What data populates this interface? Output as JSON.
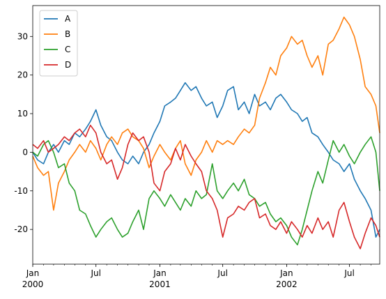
{
  "chart_data": {
    "type": "line",
    "title": "",
    "xlabel": "",
    "ylabel": "",
    "x_range": [
      "2000-01-01",
      "2002-09-26"
    ],
    "ylim": [
      -29,
      38
    ],
    "grid": false,
    "legend_position": "top-left",
    "x_ticks": [
      {
        "date": "2000-01-01",
        "label": "Jan",
        "year": "2000"
      },
      {
        "date": "2000-07-01",
        "label": "Jul",
        "year": ""
      },
      {
        "date": "2001-01-01",
        "label": "Jan",
        "year": "2001"
      },
      {
        "date": "2001-07-01",
        "label": "Jul",
        "year": ""
      },
      {
        "date": "2002-01-01",
        "label": "Jan",
        "year": "2002"
      },
      {
        "date": "2002-07-01",
        "label": "Jul",
        "year": ""
      }
    ],
    "y_ticks": [
      -20,
      -10,
      0,
      10,
      20,
      30
    ],
    "series": [
      {
        "name": "A",
        "color": "#1f77b4",
        "points": [
          [
            "2000-01-01",
            0
          ],
          [
            "2000-01-15",
            -2
          ],
          [
            "2000-02-01",
            -3
          ],
          [
            "2000-02-15",
            0
          ],
          [
            "2000-03-01",
            2
          ],
          [
            "2000-03-15",
            0
          ],
          [
            "2000-04-01",
            3
          ],
          [
            "2000-04-15",
            2
          ],
          [
            "2000-05-01",
            5
          ],
          [
            "2000-05-15",
            4
          ],
          [
            "2000-06-01",
            6
          ],
          [
            "2000-06-15",
            8
          ],
          [
            "2000-07-01",
            11
          ],
          [
            "2000-07-15",
            7
          ],
          [
            "2000-08-01",
            4
          ],
          [
            "2000-08-15",
            3
          ],
          [
            "2000-09-01",
            0
          ],
          [
            "2000-09-15",
            -2
          ],
          [
            "2000-10-01",
            -3
          ],
          [
            "2000-10-15",
            -1
          ],
          [
            "2000-11-01",
            -3
          ],
          [
            "2000-11-15",
            0
          ],
          [
            "2000-12-01",
            2
          ],
          [
            "2000-12-15",
            5
          ],
          [
            "2001-01-01",
            8
          ],
          [
            "2001-01-15",
            12
          ],
          [
            "2001-02-01",
            13
          ],
          [
            "2001-02-15",
            14
          ],
          [
            "2001-03-01",
            16
          ],
          [
            "2001-03-15",
            18
          ],
          [
            "2001-04-01",
            16
          ],
          [
            "2001-04-15",
            17
          ],
          [
            "2001-05-01",
            14
          ],
          [
            "2001-05-15",
            12
          ],
          [
            "2001-06-01",
            13
          ],
          [
            "2001-06-15",
            9
          ],
          [
            "2001-07-01",
            12
          ],
          [
            "2001-07-15",
            16
          ],
          [
            "2001-08-01",
            17
          ],
          [
            "2001-08-15",
            11
          ],
          [
            "2001-09-01",
            13
          ],
          [
            "2001-09-15",
            10
          ],
          [
            "2001-10-01",
            15
          ],
          [
            "2001-10-15",
            12
          ],
          [
            "2001-11-01",
            13
          ],
          [
            "2001-11-15",
            11
          ],
          [
            "2001-12-01",
            14
          ],
          [
            "2001-12-15",
            15
          ],
          [
            "2002-01-01",
            13
          ],
          [
            "2002-01-15",
            11
          ],
          [
            "2002-02-01",
            10
          ],
          [
            "2002-02-15",
            8
          ],
          [
            "2002-03-01",
            9
          ],
          [
            "2002-03-15",
            5
          ],
          [
            "2002-04-01",
            4
          ],
          [
            "2002-04-15",
            2
          ],
          [
            "2002-05-01",
            0
          ],
          [
            "2002-05-15",
            -2
          ],
          [
            "2002-06-01",
            -3
          ],
          [
            "2002-06-15",
            -5
          ],
          [
            "2002-07-01",
            -3
          ],
          [
            "2002-07-15",
            -7
          ],
          [
            "2002-08-01",
            -10
          ],
          [
            "2002-08-15",
            -12
          ],
          [
            "2002-09-01",
            -15
          ],
          [
            "2002-09-15",
            -22
          ],
          [
            "2002-09-26",
            -20
          ]
        ]
      },
      {
        "name": "B",
        "color": "#ff7f0e",
        "points": [
          [
            "2000-01-01",
            -1
          ],
          [
            "2000-01-15",
            -4
          ],
          [
            "2000-02-01",
            -6
          ],
          [
            "2000-02-15",
            -5
          ],
          [
            "2000-03-01",
            -15
          ],
          [
            "2000-03-15",
            -8
          ],
          [
            "2000-04-01",
            -5
          ],
          [
            "2000-04-15",
            -2
          ],
          [
            "2000-05-01",
            0
          ],
          [
            "2000-05-15",
            2
          ],
          [
            "2000-06-01",
            0
          ],
          [
            "2000-06-15",
            3
          ],
          [
            "2000-07-01",
            1
          ],
          [
            "2000-07-15",
            -2
          ],
          [
            "2000-08-01",
            2
          ],
          [
            "2000-08-15",
            4
          ],
          [
            "2000-09-01",
            2
          ],
          [
            "2000-09-15",
            5
          ],
          [
            "2000-10-01",
            6
          ],
          [
            "2000-10-15",
            4
          ],
          [
            "2000-11-01",
            3
          ],
          [
            "2000-11-15",
            1
          ],
          [
            "2000-12-01",
            -4
          ],
          [
            "2000-12-15",
            -1
          ],
          [
            "2001-01-01",
            2
          ],
          [
            "2001-01-15",
            0
          ],
          [
            "2001-02-01",
            -2
          ],
          [
            "2001-02-15",
            1
          ],
          [
            "2001-03-01",
            3
          ],
          [
            "2001-03-15",
            -3
          ],
          [
            "2001-04-01",
            -6
          ],
          [
            "2001-04-15",
            -2
          ],
          [
            "2001-05-01",
            0
          ],
          [
            "2001-05-15",
            3
          ],
          [
            "2001-06-01",
            0
          ],
          [
            "2001-06-15",
            3
          ],
          [
            "2001-07-01",
            2
          ],
          [
            "2001-07-15",
            3
          ],
          [
            "2001-08-01",
            2
          ],
          [
            "2001-08-15",
            4
          ],
          [
            "2001-09-01",
            6
          ],
          [
            "2001-09-15",
            5
          ],
          [
            "2001-10-01",
            7
          ],
          [
            "2001-10-15",
            14
          ],
          [
            "2001-11-01",
            18
          ],
          [
            "2001-11-15",
            22
          ],
          [
            "2001-12-01",
            20
          ],
          [
            "2001-12-15",
            25
          ],
          [
            "2002-01-01",
            27
          ],
          [
            "2002-01-15",
            30
          ],
          [
            "2002-02-01",
            28
          ],
          [
            "2002-02-15",
            29
          ],
          [
            "2002-03-01",
            25
          ],
          [
            "2002-03-15",
            22
          ],
          [
            "2002-04-01",
            25
          ],
          [
            "2002-04-15",
            20
          ],
          [
            "2002-05-01",
            28
          ],
          [
            "2002-05-15",
            29
          ],
          [
            "2002-06-01",
            32
          ],
          [
            "2002-06-15",
            35
          ],
          [
            "2002-07-01",
            33
          ],
          [
            "2002-07-15",
            30
          ],
          [
            "2002-08-01",
            24
          ],
          [
            "2002-08-15",
            17
          ],
          [
            "2002-09-01",
            15
          ],
          [
            "2002-09-15",
            12
          ],
          [
            "2002-09-26",
            5
          ]
        ]
      },
      {
        "name": "C",
        "color": "#2ca02c",
        "points": [
          [
            "2000-01-01",
            0
          ],
          [
            "2000-01-15",
            -1
          ],
          [
            "2000-02-01",
            2
          ],
          [
            "2000-02-15",
            3
          ],
          [
            "2000-03-01",
            0
          ],
          [
            "2000-03-15",
            -4
          ],
          [
            "2000-04-01",
            -3
          ],
          [
            "2000-04-15",
            -8
          ],
          [
            "2000-05-01",
            -10
          ],
          [
            "2000-05-15",
            -15
          ],
          [
            "2000-06-01",
            -16
          ],
          [
            "2000-06-15",
            -19
          ],
          [
            "2000-07-01",
            -22
          ],
          [
            "2000-07-15",
            -20
          ],
          [
            "2000-08-01",
            -18
          ],
          [
            "2000-08-15",
            -17
          ],
          [
            "2000-09-01",
            -20
          ],
          [
            "2000-09-15",
            -22
          ],
          [
            "2000-10-01",
            -21
          ],
          [
            "2000-10-15",
            -18
          ],
          [
            "2000-11-01",
            -15
          ],
          [
            "2000-11-15",
            -20
          ],
          [
            "2000-12-01",
            -12
          ],
          [
            "2000-12-15",
            -10
          ],
          [
            "2001-01-01",
            -12
          ],
          [
            "2001-01-15",
            -14
          ],
          [
            "2001-02-01",
            -11
          ],
          [
            "2001-02-15",
            -13
          ],
          [
            "2001-03-01",
            -15
          ],
          [
            "2001-03-15",
            -12
          ],
          [
            "2001-04-01",
            -14
          ],
          [
            "2001-04-15",
            -10
          ],
          [
            "2001-05-01",
            -12
          ],
          [
            "2001-05-15",
            -11
          ],
          [
            "2001-06-01",
            -3
          ],
          [
            "2001-06-15",
            -10
          ],
          [
            "2001-07-01",
            -12
          ],
          [
            "2001-07-15",
            -10
          ],
          [
            "2001-08-01",
            -8
          ],
          [
            "2001-08-15",
            -10
          ],
          [
            "2001-09-01",
            -7
          ],
          [
            "2001-09-15",
            -11
          ],
          [
            "2001-10-01",
            -12
          ],
          [
            "2001-10-15",
            -14
          ],
          [
            "2001-11-01",
            -13
          ],
          [
            "2001-11-15",
            -16
          ],
          [
            "2001-12-01",
            -18
          ],
          [
            "2001-12-15",
            -17
          ],
          [
            "2002-01-01",
            -19
          ],
          [
            "2002-01-15",
            -22
          ],
          [
            "2002-02-01",
            -24
          ],
          [
            "2002-02-15",
            -20
          ],
          [
            "2002-03-01",
            -15
          ],
          [
            "2002-03-15",
            -10
          ],
          [
            "2002-04-01",
            -5
          ],
          [
            "2002-04-15",
            -8
          ],
          [
            "2002-05-01",
            -2
          ],
          [
            "2002-05-15",
            3
          ],
          [
            "2002-06-01",
            0
          ],
          [
            "2002-06-15",
            2
          ],
          [
            "2002-07-01",
            -1
          ],
          [
            "2002-07-15",
            -3
          ],
          [
            "2002-08-01",
            0
          ],
          [
            "2002-08-15",
            2
          ],
          [
            "2002-09-01",
            4
          ],
          [
            "2002-09-15",
            0
          ],
          [
            "2002-09-26",
            -10
          ]
        ]
      },
      {
        "name": "D",
        "color": "#d62728",
        "points": [
          [
            "2000-01-01",
            2
          ],
          [
            "2000-01-15",
            1
          ],
          [
            "2000-02-01",
            3
          ],
          [
            "2000-02-15",
            0
          ],
          [
            "2000-03-01",
            1
          ],
          [
            "2000-03-15",
            2
          ],
          [
            "2000-04-01",
            4
          ],
          [
            "2000-04-15",
            3
          ],
          [
            "2000-05-01",
            5
          ],
          [
            "2000-05-15",
            6
          ],
          [
            "2000-06-01",
            4
          ],
          [
            "2000-06-15",
            7
          ],
          [
            "2000-07-01",
            5
          ],
          [
            "2000-07-15",
            0
          ],
          [
            "2000-08-01",
            -3
          ],
          [
            "2000-08-15",
            -2
          ],
          [
            "2000-09-01",
            -7
          ],
          [
            "2000-09-15",
            -4
          ],
          [
            "2000-10-01",
            2
          ],
          [
            "2000-10-15",
            5
          ],
          [
            "2000-11-01",
            3
          ],
          [
            "2000-11-15",
            4
          ],
          [
            "2000-12-01",
            0
          ],
          [
            "2000-12-15",
            -8
          ],
          [
            "2001-01-01",
            -10
          ],
          [
            "2001-01-15",
            -5
          ],
          [
            "2001-02-01",
            -3
          ],
          [
            "2001-02-15",
            1
          ],
          [
            "2001-03-01",
            -2
          ],
          [
            "2001-03-15",
            2
          ],
          [
            "2001-04-01",
            -1
          ],
          [
            "2001-04-15",
            -3
          ],
          [
            "2001-05-01",
            -5
          ],
          [
            "2001-05-15",
            -10
          ],
          [
            "2001-06-01",
            -12
          ],
          [
            "2001-06-15",
            -15
          ],
          [
            "2001-07-01",
            -22
          ],
          [
            "2001-07-15",
            -17
          ],
          [
            "2001-08-01",
            -16
          ],
          [
            "2001-08-15",
            -14
          ],
          [
            "2001-09-01",
            -15
          ],
          [
            "2001-09-15",
            -13
          ],
          [
            "2001-10-01",
            -12
          ],
          [
            "2001-10-15",
            -17
          ],
          [
            "2001-11-01",
            -16
          ],
          [
            "2001-11-15",
            -19
          ],
          [
            "2001-12-01",
            -20
          ],
          [
            "2001-12-15",
            -18
          ],
          [
            "2002-01-01",
            -21
          ],
          [
            "2002-01-15",
            -18
          ],
          [
            "2002-02-01",
            -20
          ],
          [
            "2002-02-15",
            -22
          ],
          [
            "2002-03-01",
            -19
          ],
          [
            "2002-03-15",
            -21
          ],
          [
            "2002-04-01",
            -17
          ],
          [
            "2002-04-15",
            -20
          ],
          [
            "2002-05-01",
            -18
          ],
          [
            "2002-05-15",
            -22
          ],
          [
            "2002-06-01",
            -15
          ],
          [
            "2002-06-15",
            -13
          ],
          [
            "2002-07-01",
            -18
          ],
          [
            "2002-07-15",
            -22
          ],
          [
            "2002-08-01",
            -25
          ],
          [
            "2002-08-15",
            -21
          ],
          [
            "2002-09-01",
            -17
          ],
          [
            "2002-09-15",
            -19
          ],
          [
            "2002-09-26",
            -22
          ]
        ]
      }
    ]
  }
}
